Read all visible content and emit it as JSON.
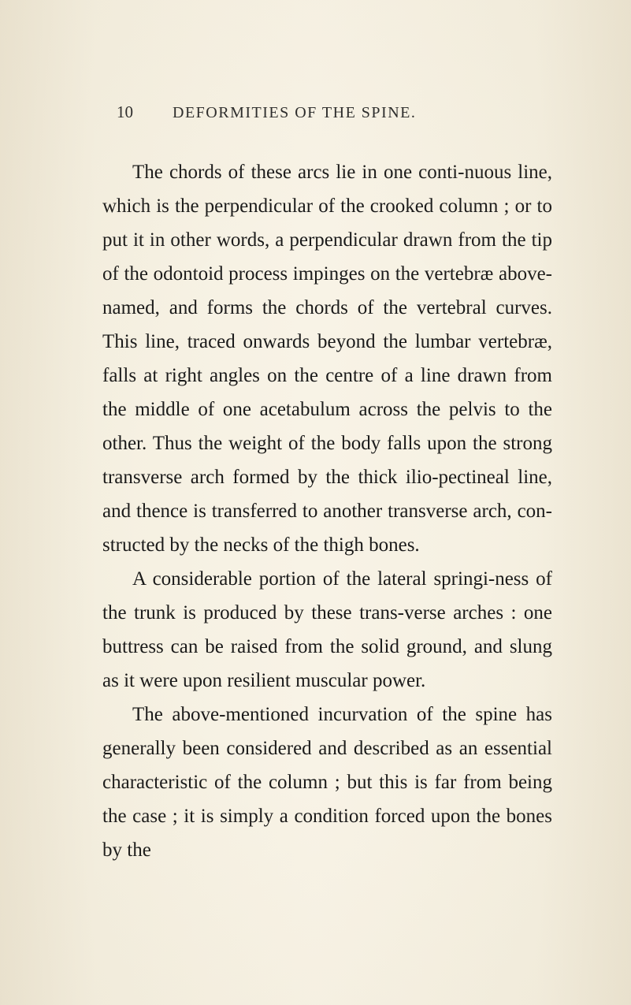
{
  "page": {
    "number": "10",
    "chapterTitle": "DEFORMITIES OF THE SPINE.",
    "paragraphs": {
      "p1": "The chords of these arcs lie in one conti-nuous line, which is the perpendicular of the crooked column ; or to put it in other words, a perpendicular drawn from the tip of the odontoid process impinges on the vertebræ above-named, and forms the chords of the vertebral curves. This line, traced onwards beyond the lumbar vertebræ, falls at right angles on the centre of a line drawn from the middle of one acetabulum across the pelvis to the other. Thus the weight of the body falls upon the strong transverse arch formed by the thick ilio-pectineal line, and thence is transferred to another transverse arch, con-structed by the necks of the thigh bones.",
      "p2": "A considerable portion of the lateral springi-ness of the trunk is produced by these trans-verse arches : one buttress can be raised from the solid ground, and slung as it were upon resilient muscular power.",
      "p3": "The above-mentioned incurvation of the spine has generally been considered and described as an essential characteristic of the column ; but this is far from being the case ; it is simply a condition forced upon the bones by the"
    }
  },
  "styling": {
    "backgroundColor": "#f5f0e1",
    "textColor": "#1a1a1a",
    "bodyFontSize": 25,
    "headerFontSize": 20,
    "pageNumberFontSize": 21,
    "lineHeight": 1.72,
    "fontFamily": "Georgia, Times New Roman, serif",
    "pageWidth": 801,
    "pageHeight": 1275,
    "textIndent": 38
  }
}
